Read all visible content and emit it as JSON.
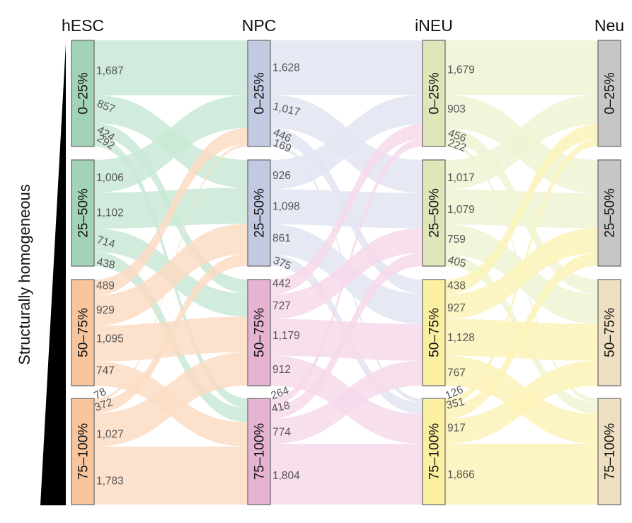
{
  "chart_data": {
    "type": "sankey",
    "ylabel": "Structurally homogeneous",
    "stages": [
      {
        "name": "hESC",
        "color_by": "bins"
      },
      {
        "name": "NPC"
      },
      {
        "name": "iNEU"
      },
      {
        "name": "Neu"
      }
    ],
    "bins": [
      "0–25%",
      "25–50%",
      "50–75%",
      "75–100%"
    ],
    "node_colors": {
      "hESC": [
        "#a3d3b6",
        "#a3d3b6",
        "#f8c49c",
        "#f8c49c"
      ],
      "NPC": [
        "#c3c9e0",
        "#c3c9e0",
        "#e6b3d3",
        "#e6b3d3"
      ],
      "iNEU": [
        "#dfe6b9",
        "#dfe6b9",
        "#fbf0a1",
        "#fbf0a1"
      ],
      "Neu": [
        "#c6c6c6",
        "#c6c6c6",
        "#eedfc3",
        "#eedfc3"
      ]
    },
    "link_colors": {
      "hESC_NPC": [
        "#c9e9d6",
        "#c9e9d6",
        "#fbdcc4",
        "#fbdcc4"
      ],
      "NPC_iNEU": [
        "#e2e5f2",
        "#e2e5f2",
        "#f6d9ea",
        "#f6d9ea"
      ],
      "iNEU_Neu": [
        "#eef3d4",
        "#eef3d4",
        "#fcf3b8",
        "#fcf3b8"
      ]
    },
    "flows": {
      "hESC_NPC": {
        "source_bins": [
          [
            "1,687",
            "857",
            "424",
            "292"
          ],
          [
            "1,006",
            "1,102",
            "714",
            "438"
          ],
          [
            "489",
            "929",
            "1,095",
            "747"
          ],
          [
            "78",
            "372",
            "1,027",
            "1,783"
          ]
        ],
        "target_bins": [
          [
            "1,628",
            "1,017",
            "446",
            "169"
          ],
          [
            "926",
            "1,098",
            "861",
            "375"
          ],
          [
            "442",
            "727",
            "1,179",
            "912"
          ],
          [
            "264",
            "418",
            "774",
            "1,804"
          ]
        ]
      },
      "NPC_iNEU": {
        "target_bins": [
          [
            "1,679",
            "903",
            "456",
            "222"
          ],
          [
            "1,017",
            "1,079",
            "759",
            "405"
          ],
          [
            "438",
            "927",
            "1,128",
            "767"
          ],
          [
            "126",
            "351",
            "917",
            "1,866"
          ]
        ]
      }
    }
  }
}
